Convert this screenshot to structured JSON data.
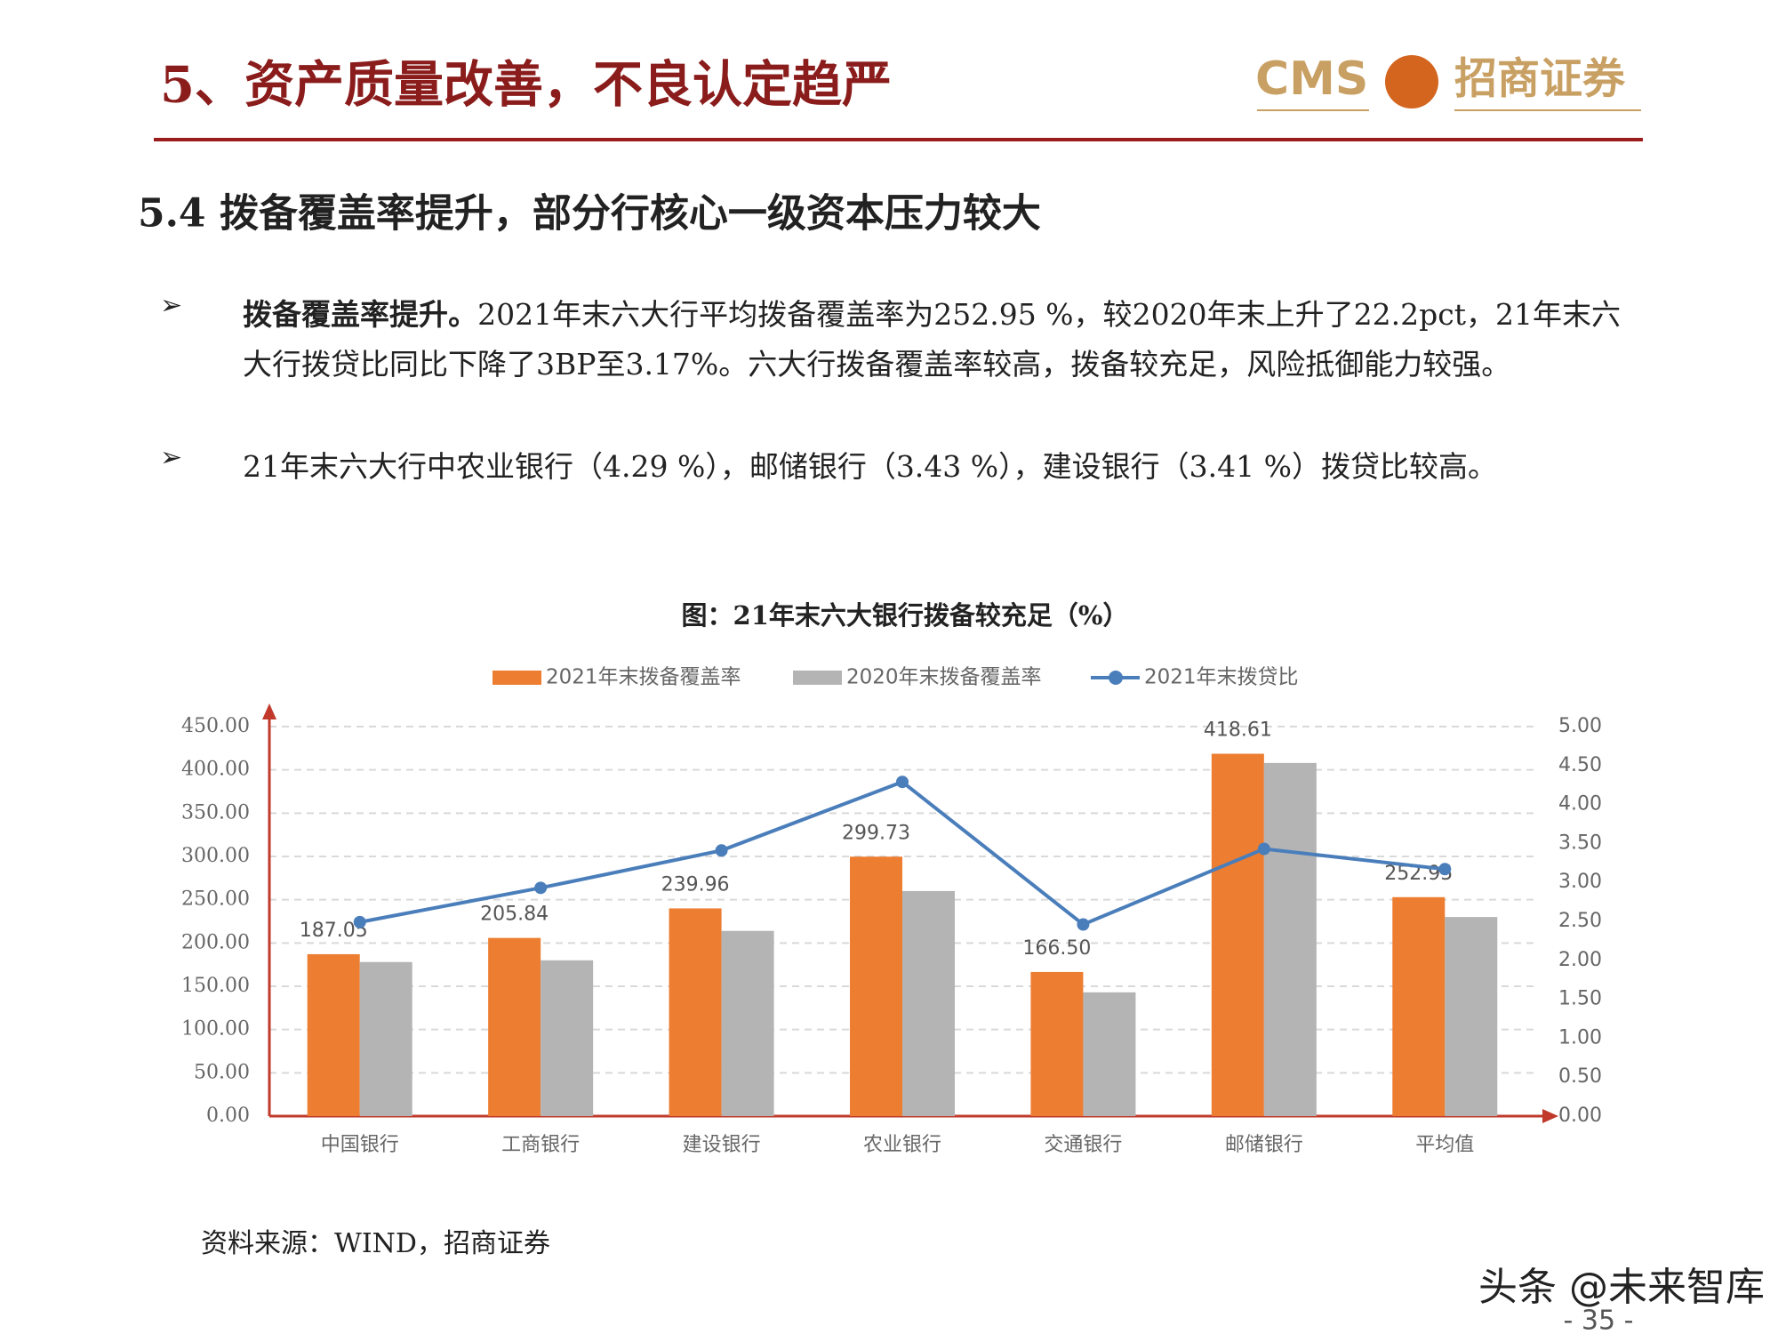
{
  "header": {
    "title": "5、资产质量改善，不良认定趋严",
    "logo_en": "CMS",
    "logo_cn": "招商证券"
  },
  "section": {
    "title": "5.4 拨备覆盖率提升，部分行核心一级资本压力较大"
  },
  "bullets": [
    {
      "lead": "拨备覆盖率提升。",
      "text": "2021年末六大行平均拨备覆盖率为252.95 %，较2020年末上升了22.2pct，21年末六大行拨贷比同比下降了3BP至3.17%。六大行拨备覆盖率较高，拨备较充足，风险抵御能力较强。"
    },
    {
      "text": "21年末六大行中农业银行（4.29 %），邮储银行（3.43 %），建设银行（3.41 %）拨贷比较高。"
    }
  ],
  "chart_data": {
    "type": "bar",
    "title": "图：21年末六大银行拨备较充足（%）",
    "categories": [
      "中国银行",
      "工商银行",
      "建设银行",
      "农业银行",
      "交通银行",
      "邮储银行",
      "平均值"
    ],
    "series": [
      {
        "name": "2021年末拨备覆盖率",
        "color": "#ed7d31",
        "values": [
          187.05,
          205.84,
          239.96,
          299.73,
          166.5,
          418.61,
          252.95
        ],
        "value_labels": [
          "187.05",
          "205.84",
          "239.96",
          "299.73",
          "166.50",
          "418.61",
          "252.95"
        ]
      },
      {
        "name": "2020年末拨备覆盖率",
        "color": "#b4b4b4",
        "values": [
          178,
          180,
          214,
          260,
          143,
          408,
          230
        ]
      },
      {
        "name": "2021年末拨贷比",
        "color": "#4a7ebb",
        "type": "line",
        "axis": "y2",
        "values": [
          2.49,
          2.93,
          3.41,
          4.29,
          2.46,
          3.43,
          3.17
        ]
      }
    ],
    "ylim": [
      0,
      450
    ],
    "yticks": [
      {
        "value": 0,
        "label": "0.00"
      },
      {
        "value": 50,
        "label": "50.00"
      },
      {
        "value": 100,
        "label": "100.00"
      },
      {
        "value": 150,
        "label": "150.00"
      },
      {
        "value": 200,
        "label": "200.00"
      },
      {
        "value": 250,
        "label": "250.00"
      },
      {
        "value": 300,
        "label": "300.00"
      },
      {
        "value": 350,
        "label": "350.00"
      },
      {
        "value": 400,
        "label": "400.00"
      },
      {
        "value": 450,
        "label": "450.00"
      }
    ],
    "y2lim": [
      0,
      5
    ],
    "y2ticks": [
      {
        "value": 0,
        "label": "0.00"
      },
      {
        "value": 0.5,
        "label": "0.50"
      },
      {
        "value": 1,
        "label": "1.00"
      },
      {
        "value": 1.5,
        "label": "1.50"
      },
      {
        "value": 2,
        "label": "2.00"
      },
      {
        "value": 2.5,
        "label": "2.50"
      },
      {
        "value": 3,
        "label": "3.00"
      },
      {
        "value": 3.5,
        "label": "3.50"
      },
      {
        "value": 4,
        "label": "4.00"
      },
      {
        "value": 4.5,
        "label": "4.50"
      },
      {
        "value": 5,
        "label": "5.00"
      }
    ],
    "grid": true
  },
  "source": "资料来源：WIND，招商证券",
  "watermark": "头条 @未来智库",
  "page_number": "- 35 -"
}
